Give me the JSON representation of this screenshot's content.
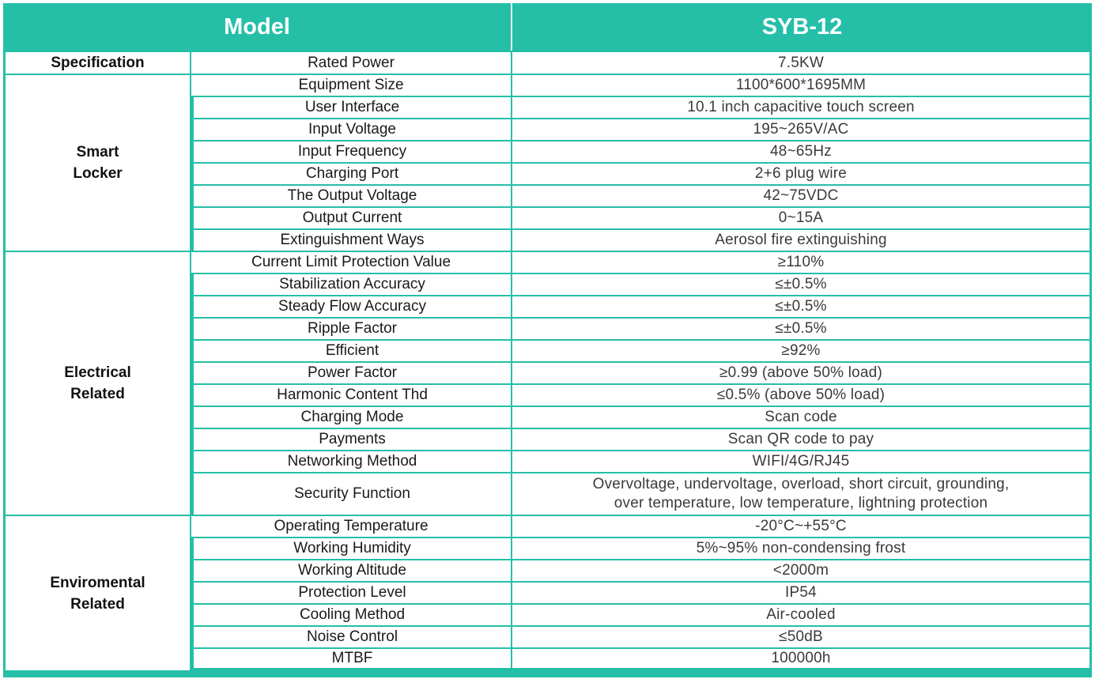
{
  "header": {
    "model_label": "Model",
    "model_value": "SYB-12"
  },
  "groups": [
    {
      "name_lines": [
        "Specification"
      ],
      "rows": [
        {
          "param": "Rated Power",
          "value": "7.5KW"
        }
      ]
    },
    {
      "name_lines": [
        "Smart",
        "Locker"
      ],
      "rows": [
        {
          "param": "Equipment Size",
          "value": "1100*600*1695MM"
        },
        {
          "param": "User Interface",
          "value": "10.1 inch capacitive touch screen"
        },
        {
          "param": "Input Voltage",
          "value": "195~265V/AC"
        },
        {
          "param": "Input Frequency",
          "value": "48~65Hz"
        },
        {
          "param": "Charging Port",
          "value": "2+6 plug wire"
        },
        {
          "param": "The Output Voltage",
          "value": "42~75VDC"
        },
        {
          "param": "Output Current",
          "value": "0~15A"
        },
        {
          "param": "Extinguishment Ways",
          "value": "Aerosol fire extinguishing"
        }
      ]
    },
    {
      "name_lines": [
        "Electrical",
        "Related"
      ],
      "rows": [
        {
          "param": "Current Limit Protection Value",
          "value": "≥110%"
        },
        {
          "param": "Stabilization Accuracy",
          "value": "≤±0.5%"
        },
        {
          "param": "Steady Flow Accuracy",
          "value": "≤±0.5%"
        },
        {
          "param": "Ripple Factor",
          "value": "≤±0.5%"
        },
        {
          "param": "Efficient",
          "value": "≥92%"
        },
        {
          "param": "Power Factor",
          "value": "≥0.99 (above 50% load)"
        },
        {
          "param": "Harmonic Content Thd",
          "value": "≤0.5% (above 50% load)"
        },
        {
          "param": "Charging Mode",
          "value": "Scan code"
        },
        {
          "param": "Payments",
          "value": "Scan QR code to pay"
        },
        {
          "param": "Networking Method",
          "value": "WIFI/4G/RJ45"
        },
        {
          "param": "Security Function",
          "value_lines": [
            "Overvoltage, undervoltage, overload, short circuit, grounding,",
            "over temperature, low temperature, lightning protection"
          ]
        }
      ]
    },
    {
      "name_lines": [
        "Enviromental",
        "Related"
      ],
      "rows": [
        {
          "param": "Operating Temperature",
          "value": "-20°C~+55°C"
        },
        {
          "param": "Working Humidity",
          "value": "5%~95% non-condensing frost"
        },
        {
          "param": "Working Altitude",
          "value": "<2000m"
        },
        {
          "param": "Protection Level",
          "value": "IP54"
        },
        {
          "param": "Cooling Method",
          "value": "Air-cooled"
        },
        {
          "param": "Noise Control",
          "value": "≤50dB"
        },
        {
          "param": "MTBF",
          "value": "100000h"
        }
      ]
    }
  ]
}
